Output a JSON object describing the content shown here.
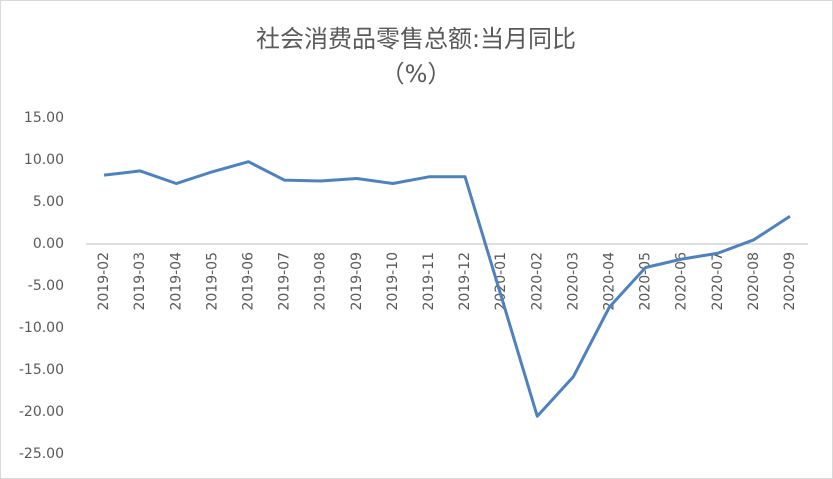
{
  "chart_data": {
    "type": "line",
    "title": "社会消费品零售总额:当月同比",
    "subtitle": "（%）",
    "categories": [
      "2019-02",
      "2019-03",
      "2019-04",
      "2019-05",
      "2019-06",
      "2019-07",
      "2019-08",
      "2019-09",
      "2019-10",
      "2019-11",
      "2019-12",
      "2020-01",
      "2020-02",
      "2020-03",
      "2020-04",
      "2020-05",
      "2020-06",
      "2020-07",
      "2020-08",
      "2020-09"
    ],
    "values": [
      8.2,
      8.7,
      7.2,
      8.6,
      9.8,
      7.6,
      7.5,
      7.8,
      7.2,
      8.0,
      8.0,
      -6.2,
      -20.5,
      -15.8,
      -7.5,
      -2.8,
      -1.8,
      -1.1,
      0.5,
      3.3
    ],
    "color": "#4f81bd",
    "ylim": [
      -25,
      15
    ],
    "yticks": [
      {
        "value": 15,
        "label": "15.00"
      },
      {
        "value": 10,
        "label": "10.00"
      },
      {
        "value": 5,
        "label": "5.00"
      },
      {
        "value": 0,
        "label": "0.00"
      },
      {
        "value": -5,
        "label": "-5.00"
      },
      {
        "value": -10,
        "label": "-10.00"
      },
      {
        "value": -15,
        "label": "-15.00"
      },
      {
        "value": -20,
        "label": "-20.00"
      },
      {
        "value": -25,
        "label": "-25.00"
      }
    ],
    "grid": false
  }
}
